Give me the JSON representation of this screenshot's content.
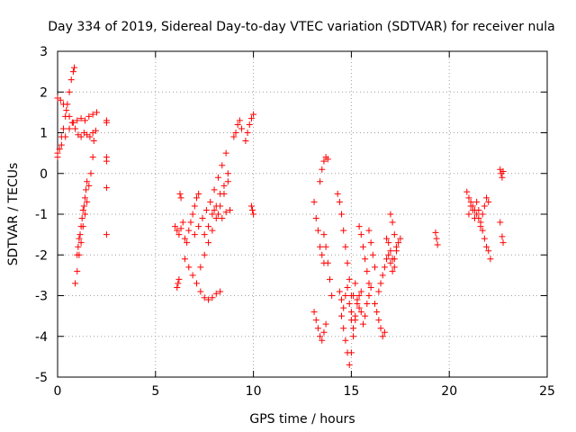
{
  "chart_data": {
    "type": "scatter",
    "title": "Day 334 of 2019, Sidereal Day-to-day VTEC variation (SDTVAR) for receiver nula",
    "xlabel": "GPS time / hours",
    "ylabel": "SDTVAR / TECUs",
    "xlim": [
      0,
      25
    ],
    "ylim": [
      -5,
      3
    ],
    "xticks": [
      0,
      5,
      10,
      15,
      20,
      25
    ],
    "yticks": [
      -5,
      -4,
      -3,
      -2,
      -1,
      0,
      1,
      2,
      3
    ],
    "grid": true,
    "marker": "+",
    "series": [
      {
        "name": "SDTVAR",
        "color": "#ff0000",
        "segments": [
          {
            "x": [
              0.0,
              0.1,
              0.2,
              0.3,
              0.4,
              0.5,
              0.6,
              0.7,
              0.8,
              0.85
            ],
            "y": [
              0.4,
              0.6,
              0.9,
              1.1,
              1.4,
              1.7,
              2.0,
              2.3,
              2.5,
              2.6
            ]
          },
          {
            "x": [
              0.0,
              0.15,
              0.3,
              0.45,
              0.6,
              0.75,
              0.9,
              1.05,
              1.2,
              1.35,
              1.5,
              1.65,
              1.8,
              1.95
            ],
            "y": [
              1.85,
              1.8,
              1.7,
              1.55,
              1.4,
              1.25,
              1.1,
              0.95,
              0.9,
              1.0,
              0.95,
              0.9,
              1.0,
              1.05
            ]
          },
          {
            "x": [
              0.0,
              0.2,
              0.4,
              0.6,
              0.8,
              1.0,
              1.2,
              1.4,
              1.6,
              1.8,
              2.0
            ],
            "y": [
              0.5,
              0.7,
              0.9,
              1.1,
              1.25,
              1.3,
              1.35,
              1.3,
              1.4,
              1.45,
              1.5
            ]
          },
          {
            "x": [
              0.9,
              1.0,
              1.1,
              1.2,
              1.3,
              1.4,
              1.5,
              1.6,
              1.7,
              1.8,
              1.85
            ],
            "y": [
              -2.7,
              -2.4,
              -2.0,
              -1.7,
              -1.3,
              -1.0,
              -0.7,
              -0.3,
              0.0,
              0.4,
              0.8
            ]
          },
          {
            "x": [
              1.0,
              1.05,
              1.1,
              1.15,
              1.2,
              1.25,
              1.3,
              1.35,
              1.4,
              1.45,
              1.5
            ],
            "y": [
              -2.0,
              -1.8,
              -1.6,
              -1.5,
              -1.3,
              -1.1,
              -0.9,
              -0.8,
              -0.6,
              -0.4,
              -0.2
            ]
          },
          {
            "x": [
              2.5,
              2.5,
              2.5,
              2.5,
              2.5,
              2.5
            ],
            "y": [
              1.3,
              1.25,
              0.4,
              0.3,
              -0.35,
              -1.5
            ]
          },
          {
            "x": [
              6.1,
              6.15,
              6.2,
              6.25,
              6.3
            ],
            "y": [
              -2.8,
              -2.7,
              -2.6,
              -0.5,
              -0.6
            ]
          },
          {
            "x": [
              6.0,
              6.1,
              6.2,
              6.3,
              6.4
            ],
            "y": [
              -1.3,
              -1.4,
              -1.5,
              -1.35,
              -1.2
            ]
          },
          {
            "x": [
              6.5,
              6.6,
              6.7,
              6.8,
              6.9,
              7.0,
              7.1,
              7.2
            ],
            "y": [
              -1.6,
              -1.7,
              -1.4,
              -1.2,
              -1.0,
              -0.8,
              -0.6,
              -0.5
            ]
          },
          {
            "x": [
              6.5,
              6.7,
              6.9,
              7.1,
              7.3,
              7.5,
              7.7,
              7.9,
              8.1,
              8.3
            ],
            "y": [
              -2.1,
              -2.3,
              -2.5,
              -2.7,
              -2.9,
              -3.05,
              -3.1,
              -3.05,
              -2.95,
              -2.9
            ]
          },
          {
            "x": [
              7.0,
              7.2,
              7.4,
              7.6,
              7.8,
              8.0,
              8.2,
              8.4,
              8.6
            ],
            "y": [
              -1.5,
              -1.3,
              -1.1,
              -0.9,
              -0.7,
              -0.4,
              -0.1,
              0.2,
              0.5
            ]
          },
          {
            "x": [
              7.3,
              7.5,
              7.7,
              7.9,
              8.1,
              8.3,
              8.5,
              8.7
            ],
            "y": [
              -2.3,
              -2.0,
              -1.7,
              -1.4,
              -1.1,
              -0.8,
              -0.5,
              -0.2
            ]
          },
          {
            "x": [
              7.5,
              7.7,
              7.9,
              8.1,
              8.3,
              8.5,
              8.7
            ],
            "y": [
              -1.5,
              -1.3,
              -1.0,
              -0.8,
              -0.5,
              -0.3,
              0.0
            ]
          },
          {
            "x": [
              8.0,
              8.2,
              8.4,
              8.6,
              8.8
            ],
            "y": [
              -0.9,
              -1.0,
              -1.1,
              -0.95,
              -0.9
            ]
          },
          {
            "x": [
              9.0,
              9.1,
              9.2,
              9.3,
              9.4
            ],
            "y": [
              0.9,
              1.0,
              1.2,
              1.3,
              1.1
            ]
          },
          {
            "x": [
              9.6,
              9.7,
              9.8,
              9.9,
              10.0
            ],
            "y": [
              0.8,
              1.0,
              1.2,
              1.35,
              1.45
            ]
          },
          {
            "x": [
              9.9,
              9.95,
              10.0
            ],
            "y": [
              -0.8,
              -0.9,
              -1.0
            ]
          },
          {
            "x": [
              13.1,
              13.2,
              13.3,
              13.4,
              13.5,
              13.6
            ],
            "y": [
              -0.7,
              -1.1,
              -1.4,
              -1.8,
              -2.0,
              -2.2
            ]
          },
          {
            "x": [
              13.4,
              13.5,
              13.6,
              13.7,
              13.8
            ],
            "y": [
              -0.2,
              0.1,
              0.3,
              0.4,
              0.35
            ]
          },
          {
            "x": [
              13.1,
              13.2,
              13.3,
              13.4,
              13.5,
              13.6,
              13.7
            ],
            "y": [
              -3.4,
              -3.6,
              -3.8,
              -4.0,
              -4.1,
              -3.9,
              -3.7
            ]
          },
          {
            "x": [
              13.6,
              13.7,
              13.8,
              13.9,
              14.0
            ],
            "y": [
              -1.5,
              -1.8,
              -2.2,
              -2.6,
              -3.0
            ]
          },
          {
            "x": [
              14.3,
              14.4,
              14.5,
              14.6,
              14.7,
              14.8,
              14.9,
              15.0
            ],
            "y": [
              -0.5,
              -0.7,
              -1.0,
              -1.4,
              -1.8,
              -2.2,
              -2.6,
              -3.0
            ]
          },
          {
            "x": [
              14.5,
              14.6,
              14.7,
              14.8,
              14.9,
              15.0,
              15.1,
              15.2
            ],
            "y": [
              -3.5,
              -3.8,
              -4.1,
              -4.4,
              -4.7,
              -4.4,
              -4.0,
              -3.6
            ]
          },
          {
            "x": [
              14.4,
              14.5,
              14.6,
              14.7,
              14.8,
              14.9,
              15.0,
              15.1,
              15.2,
              15.3,
              15.4,
              15.5
            ],
            "y": [
              -2.9,
              -3.1,
              -3.3,
              -3.0,
              -2.8,
              -3.2,
              -3.4,
              -3.0,
              -2.7,
              -3.1,
              -3.3,
              -2.9
            ]
          },
          {
            "x": [
              15.0,
              15.1,
              15.2,
              15.3,
              15.4,
              15.5,
              15.6,
              15.7,
              15.8,
              15.9,
              16.0
            ],
            "y": [
              -3.6,
              -3.8,
              -3.5,
              -3.2,
              -3.0,
              -3.4,
              -3.7,
              -3.5,
              -3.2,
              -3.0,
              -2.8
            ]
          },
          {
            "x": [
              15.4,
              15.5,
              15.6,
              15.7,
              15.8,
              15.9
            ],
            "y": [
              -1.3,
              -1.5,
              -1.8,
              -2.1,
              -2.4,
              -2.7
            ]
          },
          {
            "x": [
              15.9,
              16.0,
              16.1,
              16.2
            ],
            "y": [
              -1.4,
              -1.7,
              -2.0,
              -2.3
            ]
          },
          {
            "x": [
              16.2,
              16.3,
              16.4,
              16.5,
              16.6,
              16.7
            ],
            "y": [
              -3.2,
              -3.4,
              -3.6,
              -3.8,
              -4.0,
              -3.9
            ]
          },
          {
            "x": [
              16.4,
              16.5,
              16.6,
              16.7,
              16.8,
              16.9,
              17.0,
              17.1,
              17.2,
              17.3,
              17.4,
              17.5
            ],
            "y": [
              -2.9,
              -2.7,
              -2.5,
              -2.3,
              -2.1,
              -2.0,
              -2.2,
              -2.4,
              -2.1,
              -1.9,
              -1.7,
              -1.6
            ]
          },
          {
            "x": [
              16.8,
              16.9,
              17.0,
              17.1,
              17.2
            ],
            "y": [
              -1.6,
              -1.7,
              -1.9,
              -2.1,
              -2.3
            ]
          },
          {
            "x": [
              17.0,
              17.1,
              17.2,
              17.3
            ],
            "y": [
              -1.0,
              -1.2,
              -1.5,
              -1.8
            ]
          },
          {
            "x": [
              19.3,
              19.35,
              19.4
            ],
            "y": [
              -1.45,
              -1.6,
              -1.75
            ]
          },
          {
            "x": [
              20.9,
              21.0,
              21.1,
              21.2,
              21.3,
              21.4,
              21.5,
              21.6
            ],
            "y": [
              -0.45,
              -0.6,
              -0.7,
              -0.8,
              -0.9,
              -1.0,
              -1.1,
              -1.2
            ]
          },
          {
            "x": [
              21.0,
              21.1,
              21.2,
              21.3,
              21.4,
              21.5,
              21.6,
              21.7,
              21.8,
              21.9,
              22.0
            ],
            "y": [
              -1.0,
              -0.8,
              -0.9,
              -1.1,
              -0.7,
              -0.9,
              -1.2,
              -1.0,
              -0.8,
              -0.6,
              -0.7
            ]
          },
          {
            "x": [
              21.6,
              21.7,
              21.8,
              21.9,
              22.0,
              22.1
            ],
            "y": [
              -1.3,
              -1.4,
              -1.6,
              -1.8,
              -1.9,
              -2.1
            ]
          },
          {
            "x": [
              22.6,
              22.65,
              22.7,
              22.75
            ],
            "y": [
              0.1,
              0.0,
              -0.1,
              0.05
            ]
          },
          {
            "x": [
              22.6,
              22.7,
              22.75
            ],
            "y": [
              -1.2,
              -1.55,
              -1.7
            ]
          }
        ]
      }
    ]
  }
}
